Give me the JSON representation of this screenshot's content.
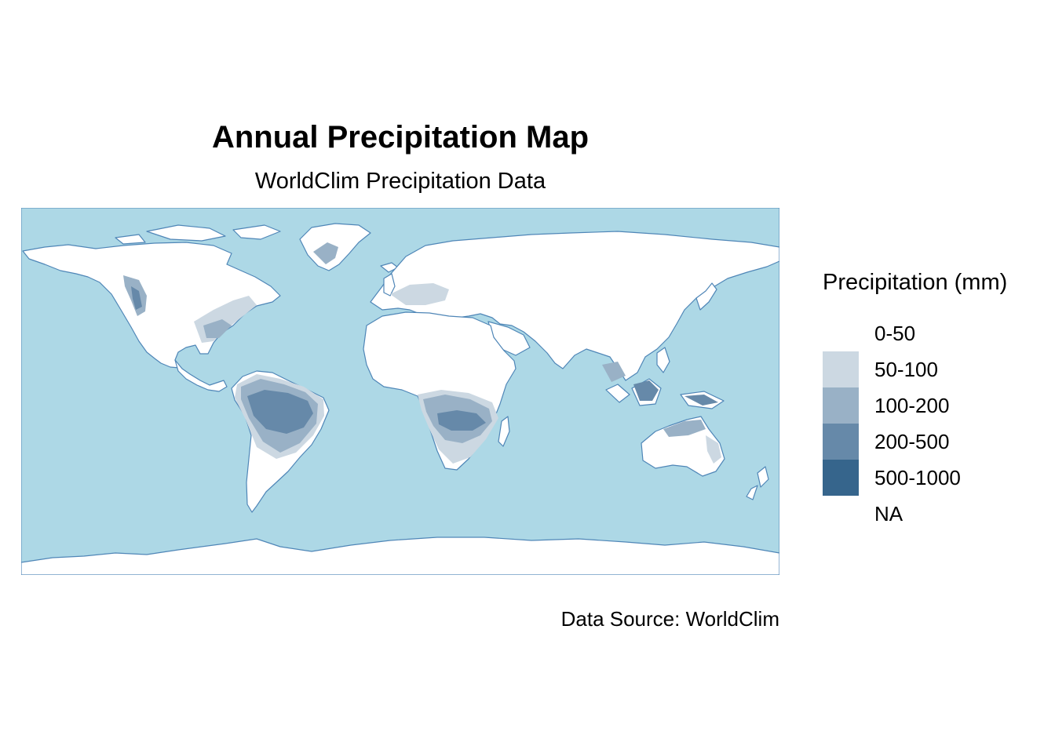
{
  "title": "Annual Precipitation Map",
  "subtitle": "WorldClim Precipitation Data",
  "caption": "Data Source: WorldClim",
  "legend": {
    "title": "Precipitation (mm)",
    "items": [
      {
        "label": "0-50",
        "color": "#ffffff"
      },
      {
        "label": "50-100",
        "color": "#ccd8e2"
      },
      {
        "label": "100-200",
        "color": "#99b1c6"
      },
      {
        "label": "200-500",
        "color": "#6689a9"
      },
      {
        "label": "500-1000",
        "color": "#36658c"
      },
      {
        "label": "NA",
        "color": "#ffffff"
      }
    ]
  },
  "colors": {
    "ocean": "#add8e6",
    "land": "#ffffff",
    "coastline": "#4f86b7"
  }
}
